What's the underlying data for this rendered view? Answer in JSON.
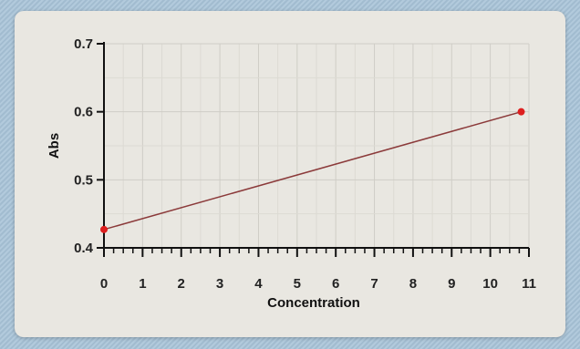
{
  "chart_data": {
    "type": "line",
    "title": "",
    "xlabel": "Concentration",
    "ylabel": "Abs",
    "xlim": [
      0,
      11
    ],
    "ylim": [
      0.4,
      0.7
    ],
    "x_ticks": [
      "0",
      "1",
      "2",
      "3",
      "4",
      "5",
      "6",
      "7",
      "8",
      "9",
      "10",
      "11"
    ],
    "y_ticks": [
      "0.4",
      "0.5",
      "0.6",
      "0.7"
    ],
    "grid": true,
    "series": [
      {
        "color": "#8b3a3a",
        "marker_color": "#dd1f1f",
        "points": [
          {
            "x": 0,
            "y": 0.427
          },
          {
            "x": 10.8,
            "y": 0.6
          }
        ]
      }
    ]
  }
}
